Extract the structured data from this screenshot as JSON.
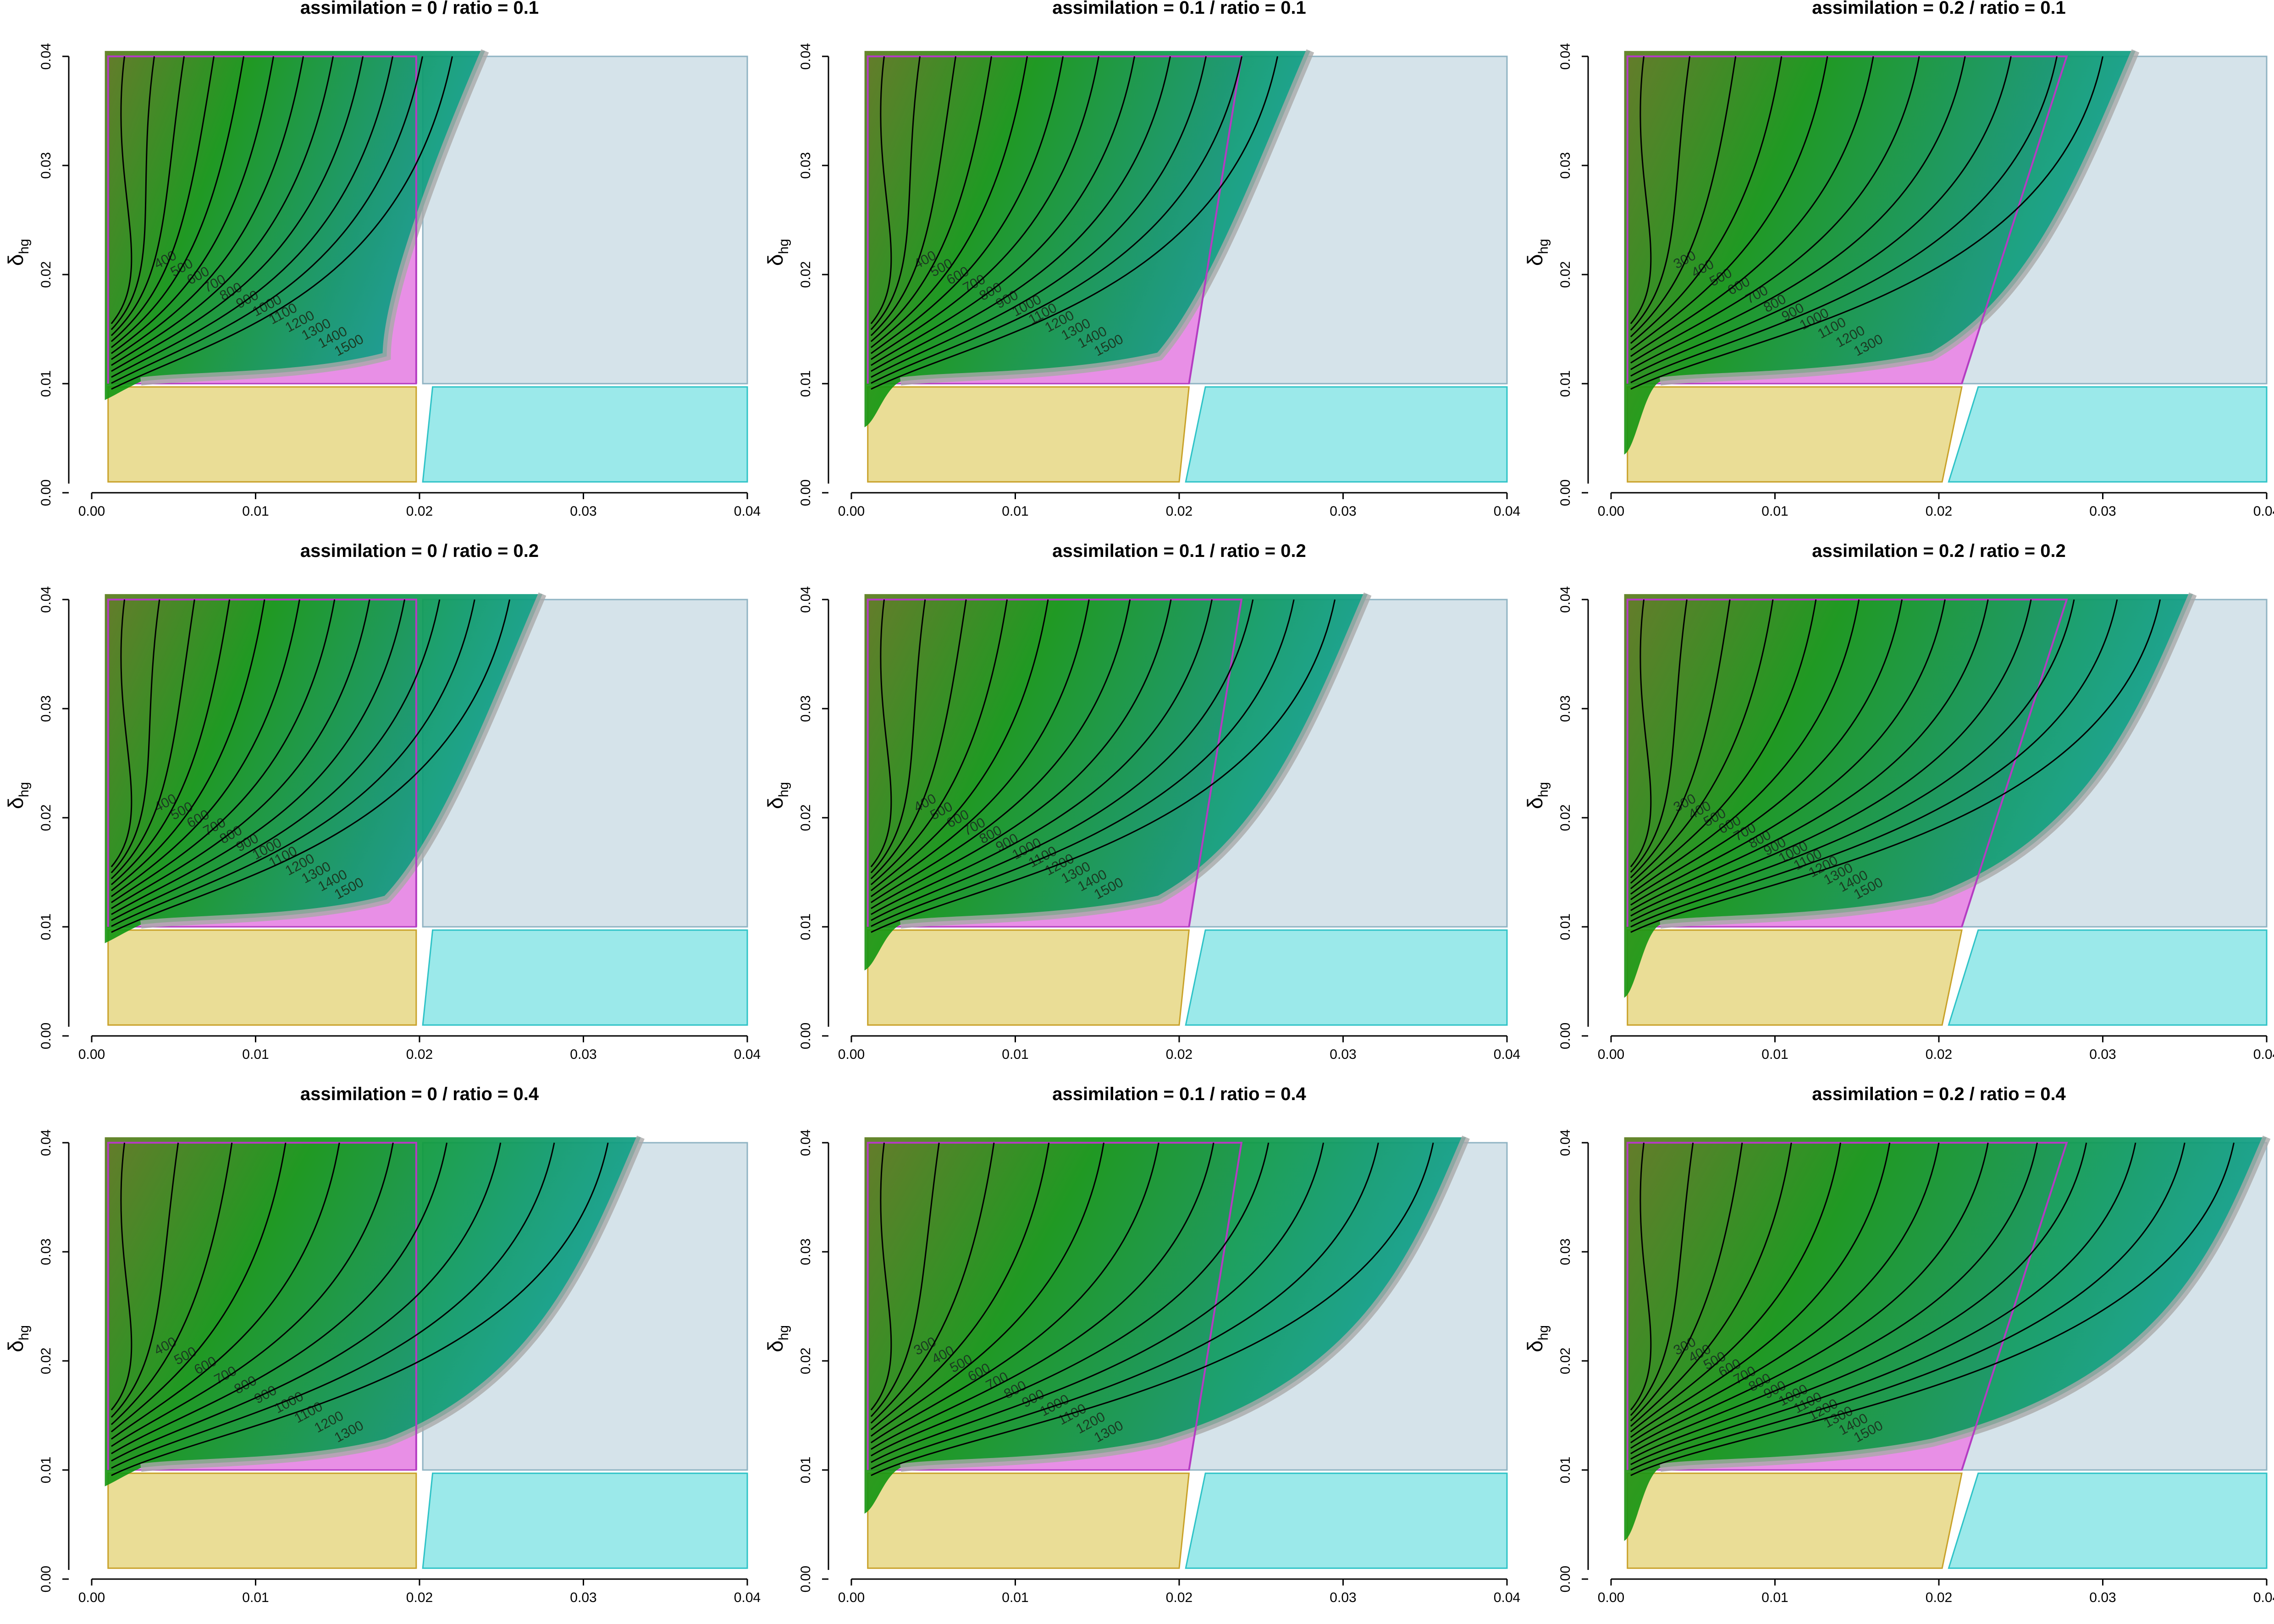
{
  "figure": {
    "y_axis_label": "δ",
    "y_axis_label_sub": "hg",
    "x_ticks": [
      "0.00",
      "0.01",
      "0.02",
      "0.03",
      "0.04"
    ],
    "y_ticks": [
      "0.00",
      "0.01",
      "0.02",
      "0.03",
      "0.04"
    ],
    "colors": {
      "background_green": "#1f9a17",
      "olive": "#5f7a1e",
      "teal": "#0b9e8a",
      "gray_blue_region": "#d5e3ea",
      "gray_blue_border": "#8fb3c3",
      "pink_region": "#e88fe6",
      "pink_border": "#b43cc2",
      "yellow_region": "#eadd96",
      "yellow_border": "#c9a22a",
      "cyan_region": "#9be9ea",
      "cyan_border": "#2fc3c7",
      "contour": "#000000",
      "band": "#a9a9a9"
    }
  },
  "chart_data": [
    {
      "type": "heatmap",
      "title": "assimilation = 0 / ratio = 0.1",
      "assimilation": 0,
      "ratio": 0.1,
      "xlim": [
        0,
        0.04
      ],
      "ylim": [
        0,
        0.04
      ],
      "frontier_right_x": 0.024,
      "frontier_low": [
        0.0008,
        0.0085
      ],
      "shift": 0.0,
      "contour_labels": [
        "400",
        "500",
        "600",
        "700",
        "800",
        "900",
        "1000",
        "1100",
        "1200",
        "1300",
        "1400",
        "1500"
      ]
    },
    {
      "type": "heatmap",
      "title": "assimilation = 0.1 / ratio = 0.1",
      "assimilation": 0.1,
      "ratio": 0.1,
      "xlim": [
        0,
        0.04
      ],
      "ylim": [
        0,
        0.04
      ],
      "frontier_right_x": 0.028,
      "frontier_low": [
        0.0008,
        0.006
      ],
      "shift": 0.004,
      "contour_labels": [
        "400",
        "500",
        "600",
        "700",
        "800",
        "900",
        "1000",
        "1100",
        "1200",
        "1300",
        "1400",
        "1500"
      ]
    },
    {
      "type": "heatmap",
      "title": "assimilation = 0.2 / ratio = 0.1",
      "assimilation": 0.2,
      "ratio": 0.1,
      "xlim": [
        0,
        0.04
      ],
      "ylim": [
        0,
        0.04
      ],
      "frontier_right_x": 0.032,
      "frontier_low": [
        0.0008,
        0.0035
      ],
      "shift": 0.008,
      "contour_labels": [
        "300",
        "400",
        "500",
        "600",
        "700",
        "800",
        "900",
        "1000",
        "1100",
        "1200",
        "1300"
      ]
    },
    {
      "type": "heatmap",
      "title": "assimilation = 0 / ratio = 0.2",
      "assimilation": 0,
      "ratio": 0.2,
      "xlim": [
        0,
        0.04
      ],
      "ylim": [
        0,
        0.04
      ],
      "frontier_right_x": 0.0275,
      "frontier_low": [
        0.0008,
        0.0085
      ],
      "shift": 0.0,
      "contour_labels": [
        "400",
        "500",
        "600",
        "700",
        "800",
        "900",
        "1000",
        "1100",
        "1200",
        "1300",
        "1400",
        "1500"
      ]
    },
    {
      "type": "heatmap",
      "title": "assimilation = 0.1 / ratio = 0.2",
      "assimilation": 0.1,
      "ratio": 0.2,
      "xlim": [
        0,
        0.04
      ],
      "ylim": [
        0,
        0.04
      ],
      "frontier_right_x": 0.0315,
      "frontier_low": [
        0.0008,
        0.006
      ],
      "shift": 0.004,
      "contour_labels": [
        "400",
        "500",
        "600",
        "700",
        "800",
        "900",
        "1000",
        "1100",
        "1200",
        "1300",
        "1400",
        "1500"
      ]
    },
    {
      "type": "heatmap",
      "title": "assimilation = 0.2 / ratio = 0.2",
      "assimilation": 0.2,
      "ratio": 0.2,
      "xlim": [
        0,
        0.04
      ],
      "ylim": [
        0,
        0.04
      ],
      "frontier_right_x": 0.0355,
      "frontier_low": [
        0.0008,
        0.0035
      ],
      "shift": 0.008,
      "contour_labels": [
        "300",
        "400",
        "500",
        "600",
        "700",
        "800",
        "900",
        "1000",
        "1100",
        "1200",
        "1300",
        "1400",
        "1500"
      ]
    },
    {
      "type": "heatmap",
      "title": "assimilation = 0 / ratio = 0.4",
      "assimilation": 0,
      "ratio": 0.4,
      "xlim": [
        0,
        0.04
      ],
      "ylim": [
        0,
        0.04
      ],
      "frontier_right_x": 0.0335,
      "frontier_low": [
        0.0008,
        0.0085
      ],
      "shift": 0.0,
      "contour_labels": [
        "400",
        "500",
        "600",
        "700",
        "800",
        "900",
        "1000",
        "1100",
        "1200",
        "1300"
      ]
    },
    {
      "type": "heatmap",
      "title": "assimilation = 0.1 / ratio = 0.4",
      "assimilation": 0.1,
      "ratio": 0.4,
      "xlim": [
        0,
        0.04
      ],
      "ylim": [
        0,
        0.04
      ],
      "frontier_right_x": 0.0375,
      "frontier_low": [
        0.0008,
        0.006
      ],
      "shift": 0.004,
      "contour_labels": [
        "300",
        "400",
        "500",
        "600",
        "700",
        "800",
        "900",
        "1000",
        "1100",
        "1200",
        "1300"
      ]
    },
    {
      "type": "heatmap",
      "title": "assimilation = 0.2 / ratio = 0.4",
      "assimilation": 0.2,
      "ratio": 0.4,
      "xlim": [
        0,
        0.04
      ],
      "ylim": [
        0,
        0.04
      ],
      "frontier_right_x": 0.04,
      "frontier_low": [
        0.0008,
        0.0035
      ],
      "shift": 0.008,
      "contour_labels": [
        "300",
        "400",
        "500",
        "600",
        "700",
        "800",
        "900",
        "1000",
        "1100",
        "1200",
        "1300",
        "1400",
        "1500"
      ]
    }
  ]
}
